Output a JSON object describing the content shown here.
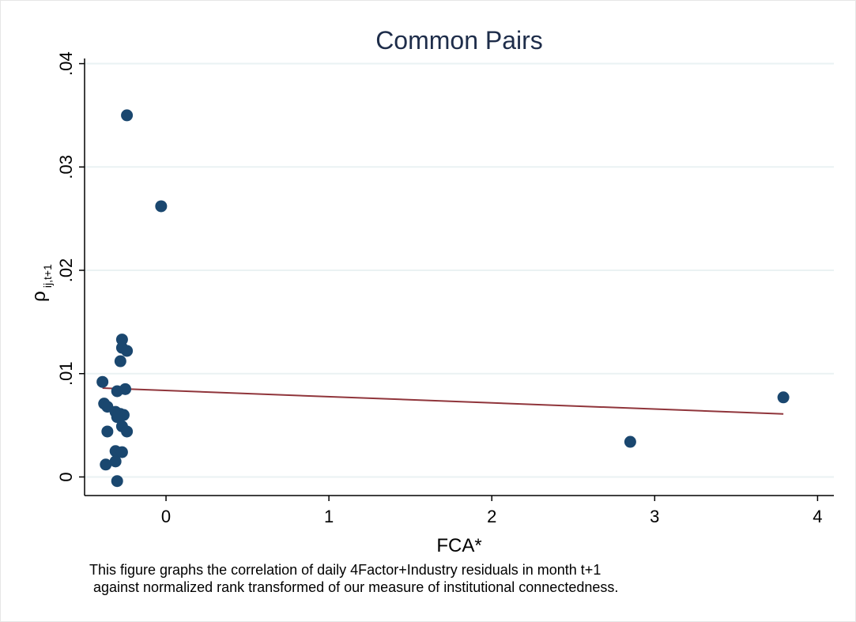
{
  "chart_data": {
    "type": "scatter",
    "title": "Common Pairs",
    "xlabel": "FCA*",
    "ylabel_main": "ρ",
    "ylabel_sub": "ij,t+1",
    "xlim": [
      -0.5,
      4.1
    ],
    "ylim": [
      -0.0018,
      0.0405
    ],
    "x_ticks": [
      0,
      1,
      2,
      3,
      4
    ],
    "x_tick_labels": [
      "0",
      "1",
      "2",
      "3",
      "4"
    ],
    "y_ticks": [
      0,
      0.01,
      0.02,
      0.03,
      0.04
    ],
    "y_tick_labels": [
      "0",
      ".01",
      ".02",
      ".03",
      ".04"
    ],
    "grid": true,
    "colors": {
      "points": "#1a476f",
      "fit_line": "#90353b",
      "grid": "#eaf2f3"
    },
    "series": [
      {
        "kind": "points",
        "x": [
          -0.24,
          -0.03,
          -0.27,
          -0.27,
          -0.24,
          -0.28,
          -0.39,
          -0.25,
          -0.3,
          -0.38,
          -0.36,
          -0.31,
          -0.28,
          -0.26,
          -0.3,
          -0.27,
          -0.36,
          -0.24,
          -0.31,
          -0.27,
          -0.31,
          -0.37,
          -0.3,
          2.85,
          3.79
        ],
        "y": [
          0.035,
          0.0262,
          0.0133,
          0.0125,
          0.0122,
          0.0112,
          0.0092,
          0.0085,
          0.0083,
          0.0071,
          0.0068,
          0.0063,
          0.0061,
          0.006,
          0.0058,
          0.0049,
          0.0044,
          0.0044,
          0.0025,
          0.0024,
          0.0015,
          0.0012,
          -0.0004,
          0.0034,
          0.0077
        ]
      },
      {
        "kind": "fit-line",
        "x": [
          -0.39,
          3.79
        ],
        "y": [
          0.0086,
          0.0061
        ]
      }
    ]
  },
  "caption": {
    "line1": "This figure graphs the correlation of daily 4Factor+Industry residuals in month t+1",
    "line2": " against normalized rank transformed of our measure of institutional connectedness."
  }
}
